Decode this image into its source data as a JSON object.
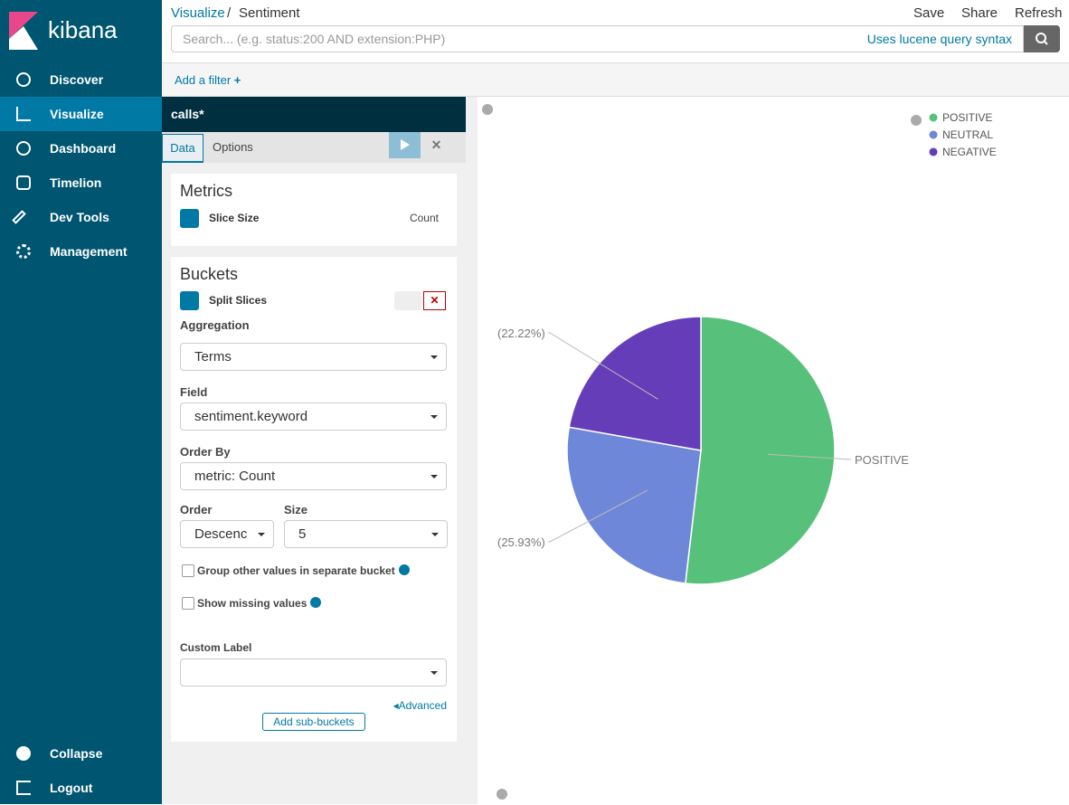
{
  "sidebar": {
    "brand": "kibana",
    "nav": [
      "Discover",
      "Visualize",
      "Dashboard",
      "Timelion",
      "Dev Tools",
      "Management"
    ],
    "footer": [
      "Collapse",
      "Logout"
    ]
  },
  "header": {
    "breadcrumb": [
      "Visualize",
      "Sentiment"
    ],
    "separator": "/",
    "actions": [
      "Save",
      "Share",
      "Refresh"
    ],
    "search_placeholder": "Search... (e.g. status:200 AND extension:PHP)",
    "syntax_link": "Uses lucene query syntax"
  },
  "filter_bar": {
    "add_filter": "Add a filter"
  },
  "editor": {
    "title": "calls*",
    "tabs": [
      "Data",
      "Options"
    ],
    "metrics": {
      "heading": "Metrics",
      "item": "Slice Size",
      "value": "Count"
    },
    "buckets": {
      "heading": "Buckets",
      "item": "Split Slices",
      "aggregation_label": "Aggregation",
      "aggregation": "Terms",
      "field_label": "Field",
      "field": "sentiment.keyword",
      "order_by_label": "Order By",
      "order_by": "metric: Count",
      "order_label": "Order",
      "order": "Descenc",
      "size_label": "Size",
      "size": 5,
      "other_bucket": "Group other values in separate bucket",
      "missing": "Show missing values",
      "custom_label": "Custom Label",
      "advanced": "Advanced",
      "add_sub": "Add sub-buckets"
    }
  },
  "chart_data": {
    "type": "pie",
    "categories": [
      "POSITIVE",
      "NEUTRAL",
      "NEGATIVE"
    ],
    "values": [
      51.85,
      25.93,
      22.22
    ],
    "value_labels": [
      null,
      "(25.93%)",
      "(22.22%)"
    ],
    "colors": [
      "#57c17b",
      "#6f87d8",
      "#663db8"
    ],
    "legend": "top-right"
  }
}
